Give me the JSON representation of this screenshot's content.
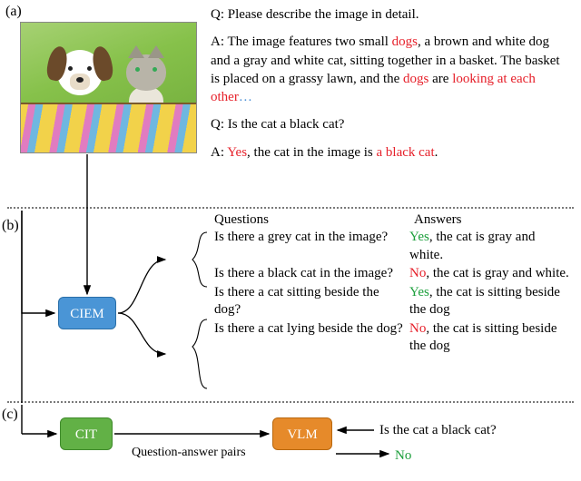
{
  "labels": {
    "a": "(a)",
    "b": "(b)",
    "c": "(c)"
  },
  "section_a": {
    "q1_prefix": "Q: ",
    "q1": "Please describe the image in detail.",
    "a1_prefix": "A:  ",
    "a1_parts": [
      {
        "t": "The image features two small ",
        "c": "black"
      },
      {
        "t": "dogs",
        "c": "red"
      },
      {
        "t": ", a brown and white dog and a gray and white cat, sitting together in a basket. The basket is placed on a grassy lawn, and the ",
        "c": "black"
      },
      {
        "t": "dogs",
        "c": "red"
      },
      {
        "t": " are ",
        "c": "black"
      },
      {
        "t": "looking at each other",
        "c": "red"
      },
      {
        "t": "…",
        "c": "blue"
      }
    ],
    "q2_prefix": "Q: ",
    "q2": "Is the cat a black cat?",
    "a2_prefix": "A: ",
    "a2_parts": [
      {
        "t": "Yes",
        "c": "red"
      },
      {
        "t": ", the cat in the image is ",
        "c": "black"
      },
      {
        "t": "a black cat",
        "c": "red"
      },
      {
        "t": ".",
        "c": "black"
      }
    ]
  },
  "section_b": {
    "ciem_label": "CIEM",
    "ciem_color": "#4a95d6",
    "col_q": "Questions",
    "col_a": "Answers",
    "pairs": [
      {
        "q": "Is there a grey cat in the image?",
        "a": [
          {
            "t": "Yes",
            "c": "green"
          },
          {
            "t": ", the cat is gray and white.",
            "c": "black"
          }
        ]
      },
      {
        "q": "Is there a black cat in the image?",
        "a": [
          {
            "t": "No",
            "c": "red"
          },
          {
            "t": ", the cat is gray and white.",
            "c": "black"
          }
        ]
      },
      {
        "q": "Is there a cat sitting beside the dog?",
        "a": [
          {
            "t": "Yes",
            "c": "green"
          },
          {
            "t": ", the cat is sitting beside the dog",
            "c": "black"
          }
        ]
      },
      {
        "q": "Is there a cat lying beside the dog?",
        "a": [
          {
            "t": "No",
            "c": "red"
          },
          {
            "t": ", the cat is sitting beside the dog",
            "c": "black"
          }
        ]
      }
    ]
  },
  "section_c": {
    "cit_label": "CIT",
    "cit_color": "#62b146",
    "vlm_label": "VLM",
    "vlm_color": "#e68a2a",
    "edge_label": "Question-answer pairs",
    "vlm_q": "Is the cat a black cat?",
    "vlm_a": [
      {
        "t": "No",
        "c": "green"
      }
    ]
  },
  "style": {
    "red": "#e6202a",
    "green": "#1a9e3a",
    "font_family": "Times New Roman",
    "font_size_pt": 11,
    "divider_color": "#7a7a7a",
    "arrow_color": "#000000",
    "bracket_color": "#000000"
  }
}
